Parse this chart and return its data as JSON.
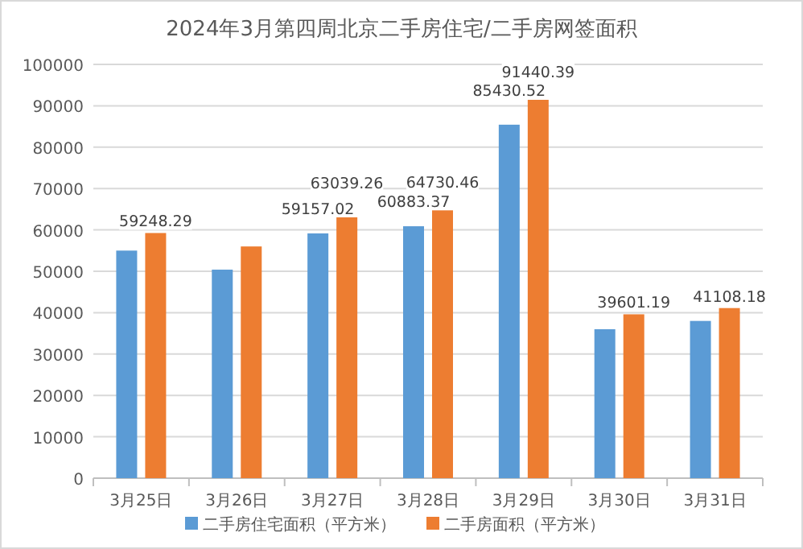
{
  "chart_data": {
    "type": "bar",
    "title": "2024年3月第四周北京二手房住宅/二手房网签面积",
    "categories": [
      "3月25日",
      "3月26日",
      "3月27日",
      "3月28日",
      "3月29日",
      "3月30日",
      "3月31日"
    ],
    "series": [
      {
        "name": "二手房住宅面积（平方米）",
        "color": "#5b9bd5",
        "values": [
          55000,
          50400,
          59157.02,
          60883.37,
          85430.52,
          36000,
          38000
        ],
        "value_labels": [
          null,
          null,
          "59157.02",
          "60883.37",
          "85430.52",
          null,
          null
        ]
      },
      {
        "name": "二手房面积（平方米）",
        "color": "#ed7d31",
        "values": [
          59248.29,
          56000,
          63039.26,
          64730.46,
          91440.39,
          39601.19,
          41108.18
        ],
        "value_labels": [
          "59248.29",
          null,
          "63039.26",
          "64730.46",
          "91440.39",
          "39601.19",
          "41108.18"
        ]
      }
    ],
    "ylim": [
      0,
      100000
    ],
    "yticks": [
      0,
      10000,
      20000,
      30000,
      40000,
      50000,
      60000,
      70000,
      80000,
      90000,
      100000
    ],
    "grid": "y",
    "legend": "bottom"
  }
}
